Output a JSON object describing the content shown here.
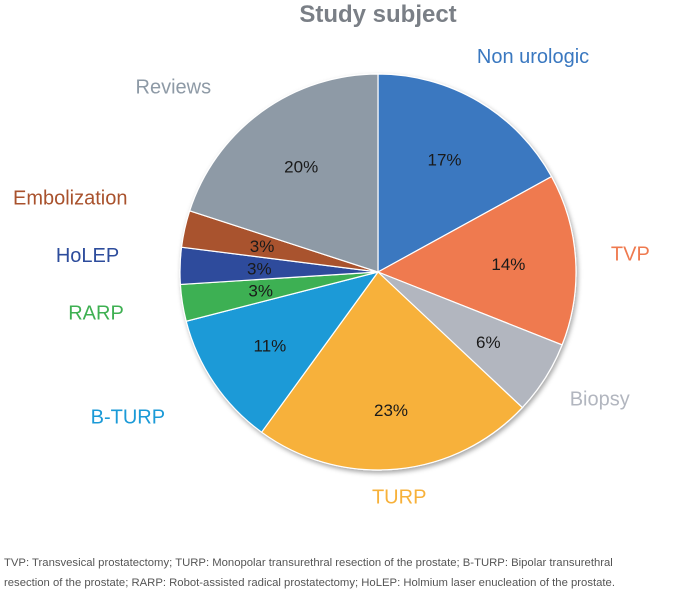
{
  "chart_data": {
    "type": "pie",
    "title": "Study subject",
    "categories": [
      "Non urologic",
      "TVP",
      "Biopsy",
      "TURP",
      "B-TURP",
      "RARP",
      "HoLEP",
      "Embolization",
      "Reviews"
    ],
    "values": [
      17,
      14,
      6,
      23,
      11,
      3,
      3,
      3,
      20
    ],
    "labels": [
      "17%",
      "14%",
      "6%",
      "23%",
      "11%",
      "3%",
      "3%",
      "3%",
      "20%"
    ],
    "colors": [
      "#3a78c0",
      "#ef7a4f",
      "#b2b6bf",
      "#f7b13a",
      "#1b9ad7",
      "#3eb052",
      "#2d4c9c",
      "#a9522d",
      "#8e9aa6"
    ],
    "label_colors": [
      "#3a78c0",
      "#ef7a4f",
      "#b2b6bf",
      "#f7b13a",
      "#1b9ad7",
      "#3eb052",
      "#2d4c9c",
      "#a9522d",
      "#8e9aa6"
    ],
    "title_color": "#7a7f86",
    "start_direction": "12 o'clock, clockwise"
  },
  "footnote": {
    "line1": "TVP: Transvesical prostatectomy; TURP: Monopolar transurethral resection of the prostate; B-TURP: Bipolar transurethral",
    "line2": "resection of the prostate; RARP: Robot-assisted radical prostatectomy; HoLEP: Holmium laser enucleation of the prostate."
  }
}
